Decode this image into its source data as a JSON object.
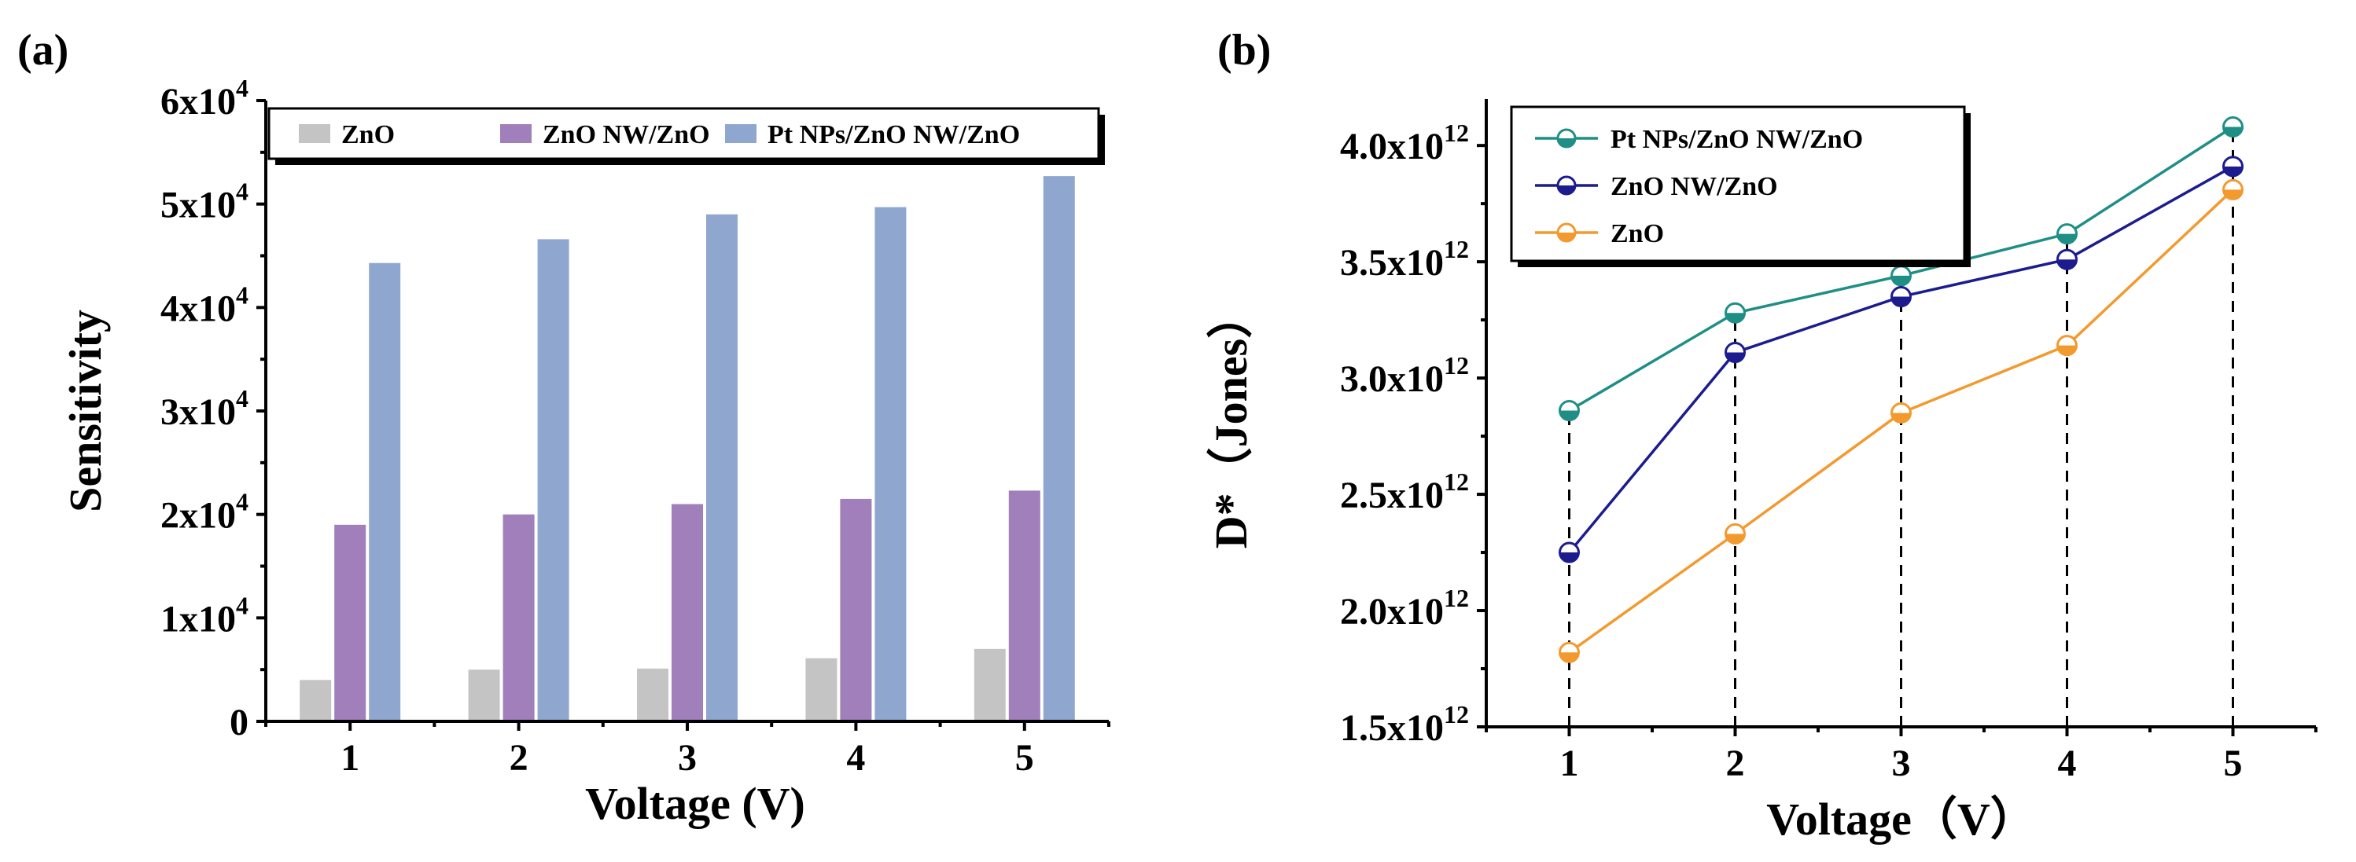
{
  "chart_data": [
    {
      "panel_label": "(a)",
      "type": "bar",
      "categories": [
        "1",
        "2",
        "3",
        "4",
        "5"
      ],
      "series": [
        {
          "name": "ZnO",
          "color": "#c4c4c4",
          "values": [
            4000,
            5000,
            5100,
            6100,
            7000
          ]
        },
        {
          "name": "ZnO NW/ZnO",
          "color": "#a07fba",
          "values": [
            19000,
            20000,
            21000,
            21500,
            22300
          ]
        },
        {
          "name": "Pt NPs/ZnO NW/ZnO",
          "color": "#8fa7cf",
          "values": [
            44300,
            46600,
            49000,
            49700,
            52700
          ]
        }
      ],
      "xlabel": "Voltage (V)",
      "ylabel": "Sensitivity",
      "ylim": [
        0,
        60000
      ],
      "yticks": [
        {
          "value": 0,
          "label": "0",
          "exp": ""
        },
        {
          "value": 10000,
          "label": "1x10",
          "exp": "4"
        },
        {
          "value": 20000,
          "label": "2x10",
          "exp": "4"
        },
        {
          "value": 30000,
          "label": "3x10",
          "exp": "4"
        },
        {
          "value": 40000,
          "label": "4x10",
          "exp": "4"
        },
        {
          "value": 50000,
          "label": "5x10",
          "exp": "4"
        },
        {
          "value": 60000,
          "label": "6x10",
          "exp": "4"
        }
      ],
      "legend": "top"
    },
    {
      "panel_label": "(b)",
      "type": "line",
      "x": [
        1,
        2,
        3,
        4,
        5
      ],
      "xticks": [
        "1",
        "2",
        "3",
        "4",
        "5"
      ],
      "series": [
        {
          "name": "Pt NPs/ZnO NW/ZnO",
          "color": "#1f8f86",
          "values": [
            2860000000000.0,
            3280000000000.0,
            3440000000000.0,
            3620000000000.0,
            4080000000000.0
          ]
        },
        {
          "name": "ZnO NW/ZnO",
          "color": "#1c1c8f",
          "values": [
            2250000000000.0,
            3110000000000.0,
            3350000000000.0,
            3510000000000.0,
            3910000000000.0
          ]
        },
        {
          "name": "ZnO",
          "color": "#f29a2e",
          "values": [
            1820000000000.0,
            2330000000000.0,
            2850000000000.0,
            3140000000000.0,
            3810000000000.0
          ]
        }
      ],
      "xlabel": "Voltage（V）",
      "ylabel": "D*（Jones）",
      "ylim": [
        1500000000000.0,
        4200000000000.0
      ],
      "yticks": [
        {
          "value": 1500000000000.0,
          "label": "1.5x10",
          "exp": "12"
        },
        {
          "value": 2000000000000.0,
          "label": "2.0x10",
          "exp": "12"
        },
        {
          "value": 2500000000000.0,
          "label": "2.5x10",
          "exp": "12"
        },
        {
          "value": 3000000000000.0,
          "label": "3.0x10",
          "exp": "12"
        },
        {
          "value": 3500000000000.0,
          "label": "3.5x10",
          "exp": "12"
        },
        {
          "value": 4000000000000.0,
          "label": "4.0x10",
          "exp": "12"
        }
      ],
      "legend": "top-left",
      "dashed_guides": true
    }
  ]
}
